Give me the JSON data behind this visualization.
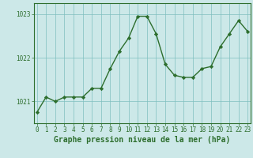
{
  "x": [
    0,
    1,
    2,
    3,
    4,
    5,
    6,
    7,
    8,
    9,
    10,
    11,
    12,
    13,
    14,
    15,
    16,
    17,
    18,
    19,
    20,
    21,
    22,
    23
  ],
  "y": [
    1020.75,
    1021.1,
    1021.0,
    1021.1,
    1021.1,
    1021.1,
    1021.3,
    1021.3,
    1021.75,
    1022.15,
    1022.45,
    1022.95,
    1022.95,
    1022.55,
    1021.85,
    1021.6,
    1021.55,
    1021.55,
    1021.75,
    1021.8,
    1022.25,
    1022.55,
    1022.85,
    1022.6
  ],
  "line_color": "#2d6e2d",
  "marker": "D",
  "marker_size": 2.2,
  "bg_color": "#cce8e8",
  "grid_color": "#7fbfbf",
  "axis_color": "#2d6e2d",
  "ylim": [
    1020.5,
    1023.25
  ],
  "yticks": [
    1021,
    1022,
    1023
  ],
  "xlim": [
    -0.3,
    23.3
  ],
  "xticks": [
    0,
    1,
    2,
    3,
    4,
    5,
    6,
    7,
    8,
    9,
    10,
    11,
    12,
    13,
    14,
    15,
    16,
    17,
    18,
    19,
    20,
    21,
    22,
    23
  ],
  "xlabel": "Graphe pression niveau de la mer (hPa)",
  "xlabel_fontsize": 7,
  "tick_fontsize": 5.5,
  "tick_color": "#2d6e2d",
  "spine_color": "#2d6e2d",
  "linewidth": 1.0
}
